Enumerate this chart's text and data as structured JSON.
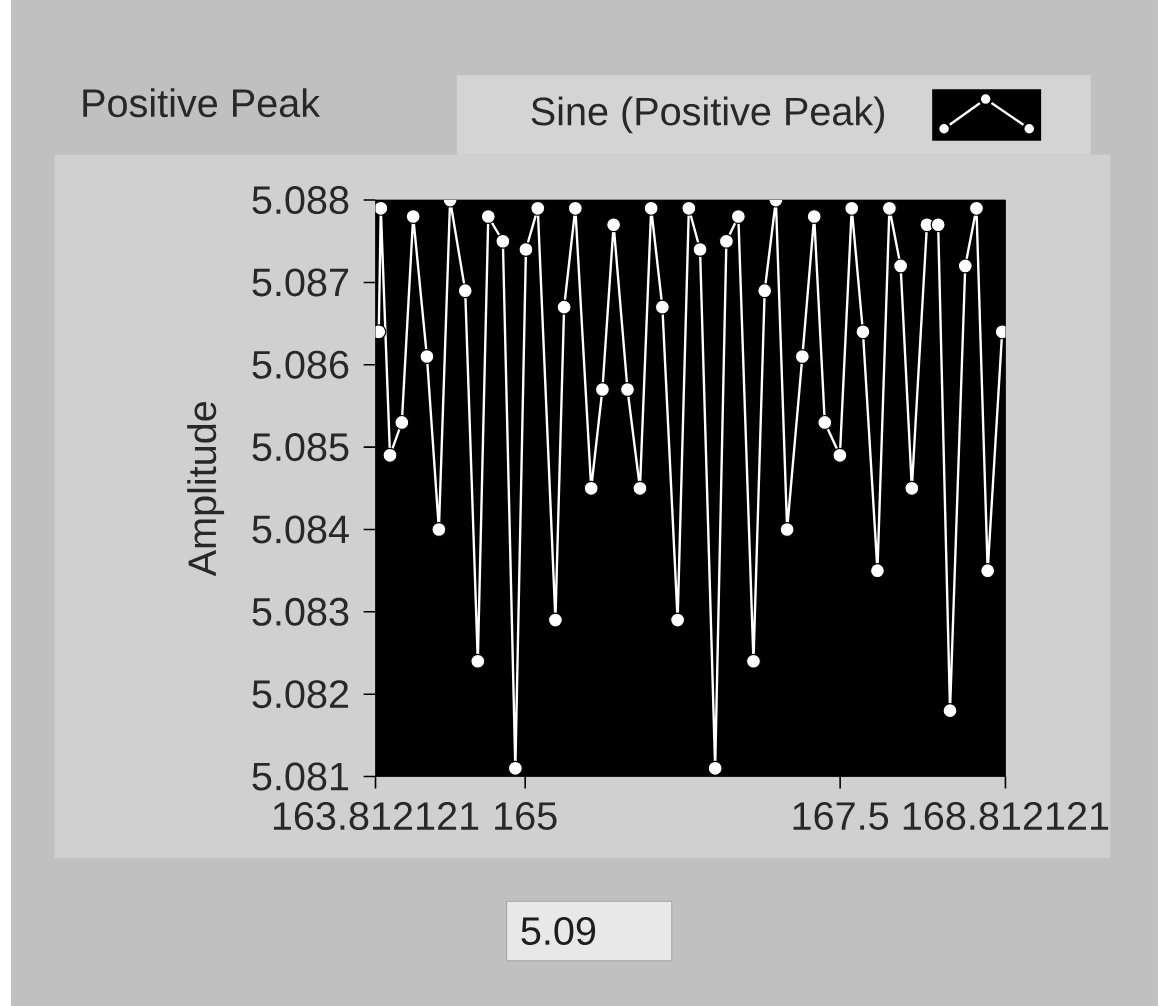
{
  "chart_data": {
    "type": "line",
    "title": "Positive Peak",
    "ylabel": "Amplitude",
    "x": [
      163.838,
      163.854,
      163.927,
      164.021,
      164.111,
      164.22,
      164.315,
      164.404,
      164.524,
      164.624,
      164.707,
      164.823,
      164.922,
      165.006,
      165.1,
      165.24,
      165.309,
      165.398,
      165.524,
      165.613,
      165.702,
      165.812,
      165.911,
      166.0,
      166.089,
      166.21,
      166.299,
      166.388,
      166.508,
      166.597,
      166.692,
      166.812,
      166.901,
      166.99,
      167.079,
      167.2,
      167.294,
      167.378,
      167.498,
      167.592,
      167.681,
      167.796,
      167.891,
      167.98,
      168.069,
      168.189,
      168.278,
      168.372,
      168.493,
      168.582,
      168.671,
      168.786
    ],
    "series": [
      {
        "name": "Sine (Positive Peak)",
        "color": "#ffffff",
        "values": [
          5.0864,
          5.0879,
          5.0849,
          5.0853,
          5.0878,
          5.0861,
          5.084,
          5.088,
          5.0869,
          5.0824,
          5.0878,
          5.0875,
          5.0811,
          5.0874,
          5.0879,
          5.0829,
          5.0867,
          5.0879,
          5.0845,
          5.0857,
          5.0877,
          5.0857,
          5.0845,
          5.0879,
          5.0867,
          5.0829,
          5.0879,
          5.0874,
          5.0811,
          5.0875,
          5.0878,
          5.0824,
          5.0869,
          5.088,
          5.084,
          5.0861,
          5.0878,
          5.0853,
          5.0849,
          5.0879,
          5.0864,
          5.0835,
          5.0879,
          5.0872,
          5.0845,
          5.0877,
          5.0877,
          5.0818,
          5.0872,
          5.0879,
          5.0835,
          5.0864
        ]
      }
    ],
    "xlim": [
      163.812121,
      168.812121
    ],
    "xticks": [
      163.812121,
      165,
      167.5,
      168.812121
    ],
    "ylim": [
      5.081,
      5.088
    ],
    "yticks": [
      5.081,
      5.082,
      5.083,
      5.084,
      5.085,
      5.086,
      5.087,
      5.088
    ],
    "marker": "circle",
    "line_style": "solid",
    "grid": false,
    "legend": "top right",
    "annotations": [
      "5.09"
    ]
  }
}
